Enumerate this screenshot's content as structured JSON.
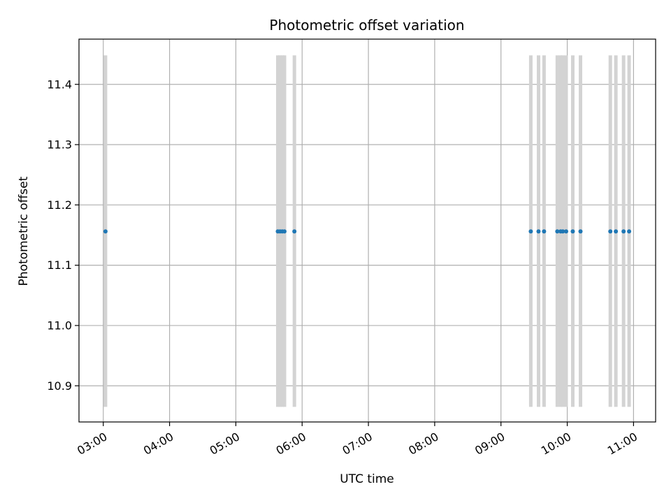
{
  "chart_data": {
    "type": "scatter",
    "title": "Photometric offset variation",
    "xlabel": "UTC time",
    "ylabel": "Photometric offset",
    "grid": true,
    "x_axis": {
      "ticks": [
        "03:00",
        "04:00",
        "05:00",
        "06:00",
        "07:00",
        "08:00",
        "09:00",
        "10:00",
        "11:00"
      ],
      "range": [
        "02:38",
        "11:20"
      ]
    },
    "y_axis": {
      "ticks": [
        "10.9",
        "11.0",
        "11.1",
        "11.2",
        "11.3",
        "11.4"
      ],
      "range": [
        10.84,
        11.475
      ]
    },
    "error_bar_range": [
      10.865,
      11.448
    ],
    "colors": {
      "points": "#1f77b4",
      "error_bars": "#d3d3d3"
    },
    "points": [
      {
        "x": "03:02",
        "y": 11.156
      },
      {
        "x": "05:38",
        "y": 11.156
      },
      {
        "x": "05:40",
        "y": 11.156
      },
      {
        "x": "05:42",
        "y": 11.156
      },
      {
        "x": "05:44",
        "y": 11.156
      },
      {
        "x": "05:53",
        "y": 11.156
      },
      {
        "x": "09:27",
        "y": 11.156
      },
      {
        "x": "09:34",
        "y": 11.156
      },
      {
        "x": "09:39",
        "y": 11.156
      },
      {
        "x": "09:51",
        "y": 11.156
      },
      {
        "x": "09:54",
        "y": 11.156
      },
      {
        "x": "09:56",
        "y": 11.156
      },
      {
        "x": "09:59",
        "y": 11.156
      },
      {
        "x": "10:05",
        "y": 11.156
      },
      {
        "x": "10:12",
        "y": 11.156
      },
      {
        "x": "10:39",
        "y": 11.156
      },
      {
        "x": "10:44",
        "y": 11.156
      },
      {
        "x": "10:51",
        "y": 11.156
      },
      {
        "x": "10:56",
        "y": 11.156
      }
    ]
  }
}
